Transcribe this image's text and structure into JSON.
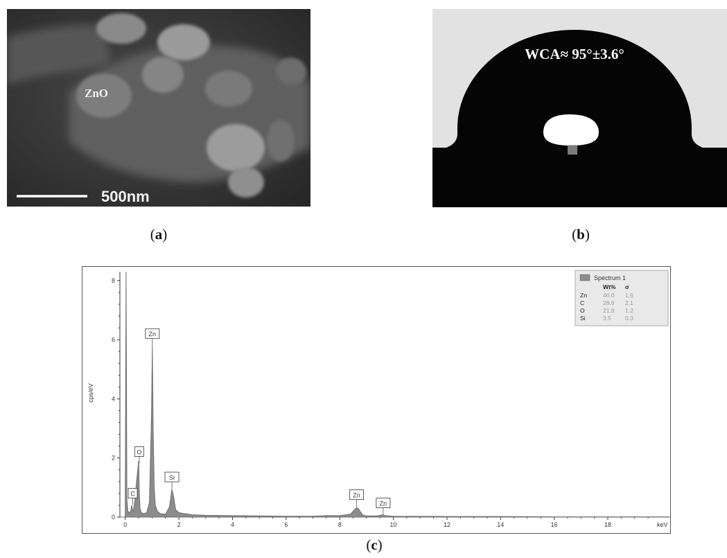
{
  "panel_a": {
    "label": "ZnO",
    "scale_text": "500nm",
    "caption_open": "(",
    "caption_letter": "a",
    "caption_close": ")"
  },
  "panel_b": {
    "measurement": "WCA≈ 95°±3.6°",
    "caption_open": "(",
    "caption_letter": "b",
    "caption_close": ")"
  },
  "panel_c": {
    "caption_open": "(",
    "caption_letter": "c",
    "caption_close": ")"
  },
  "chart_data": {
    "type": "line",
    "title": "",
    "xlabel": "keV",
    "ylabel": "cps/eV",
    "xlim": [
      -0.2,
      20.3
    ],
    "ylim": [
      0,
      8.3
    ],
    "x_ticks": [
      0,
      2,
      4,
      6,
      8,
      10,
      12,
      14,
      16,
      18
    ],
    "y_ticks": [
      0,
      2,
      4,
      6,
      8
    ],
    "series": [
      {
        "name": "Spectrum 1",
        "x": [
          -0.2,
          0.0,
          0.03,
          0.06,
          0.1,
          0.15,
          0.2,
          0.24,
          0.27,
          0.3,
          0.35,
          0.4,
          0.45,
          0.5,
          0.52,
          0.55,
          0.6,
          0.7,
          0.8,
          0.9,
          0.98,
          1.01,
          1.04,
          1.08,
          1.12,
          1.2,
          1.3,
          1.5,
          1.65,
          1.74,
          1.8,
          1.88,
          2.0,
          2.2,
          2.5,
          3.0,
          4.0,
          5.0,
          6.0,
          7.0,
          7.5,
          8.0,
          8.4,
          8.55,
          8.63,
          8.7,
          8.85,
          9.0,
          9.4,
          9.55,
          9.62,
          9.7,
          10.0,
          12.0,
          14.0,
          16.0,
          18.0,
          20.3
        ],
        "y": [
          0.0,
          0.0,
          8.3,
          0.6,
          0.2,
          0.15,
          0.2,
          0.4,
          0.25,
          0.2,
          0.5,
          1.0,
          1.45,
          1.9,
          0.9,
          0.3,
          0.15,
          0.12,
          0.15,
          0.5,
          3.5,
          5.8,
          3.0,
          1.0,
          0.4,
          0.2,
          0.12,
          0.1,
          0.35,
          0.95,
          0.7,
          0.25,
          0.15,
          0.12,
          0.08,
          0.06,
          0.05,
          0.04,
          0.03,
          0.03,
          0.05,
          0.05,
          0.1,
          0.25,
          0.33,
          0.28,
          0.08,
          0.04,
          0.04,
          0.07,
          0.08,
          0.05,
          0.03,
          0.02,
          0.02,
          0.01,
          0.01,
          0.01
        ]
      }
    ],
    "peak_labels": [
      {
        "text": "C",
        "x": 0.28,
        "y": 0.55
      },
      {
        "text": "O",
        "x": 0.52,
        "y": 1.96
      },
      {
        "text": "Zn",
        "x": 1.01,
        "y": 5.95
      },
      {
        "text": "Si",
        "x": 1.74,
        "y": 1.1
      },
      {
        "text": "Zn",
        "x": 8.63,
        "y": 0.5
      },
      {
        "text": "Zn",
        "x": 9.62,
        "y": 0.22
      }
    ],
    "legend": {
      "placement": "top-right",
      "title": "Spectrum 1",
      "headers": [
        "",
        "Wt%",
        "σ"
      ],
      "rows": [
        [
          "Zn",
          "46.0",
          "1.6"
        ],
        [
          "C",
          "28.6",
          "2.1"
        ],
        [
          "O",
          "21.9",
          "1.2"
        ],
        [
          "Si",
          "3.5",
          "0.3"
        ]
      ]
    },
    "grid": false
  }
}
